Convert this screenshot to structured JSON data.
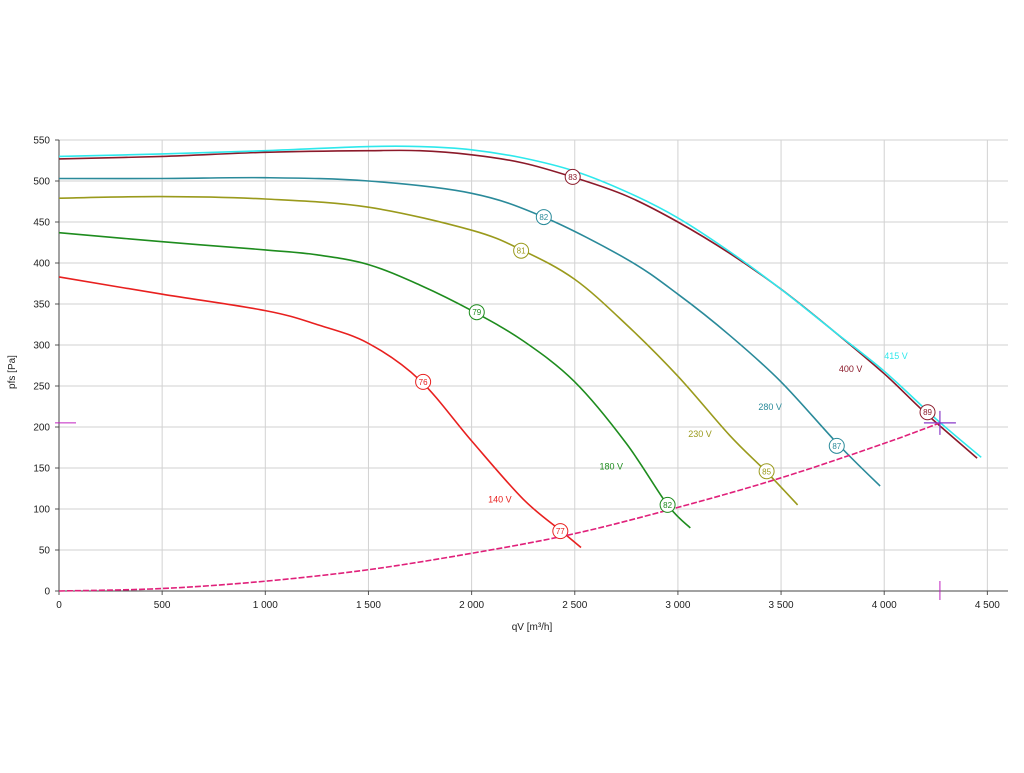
{
  "chart_data": {
    "type": "line",
    "xlabel": "qV [m³/h]",
    "ylabel": "pfs [Pa]",
    "xlim": [
      0,
      4600
    ],
    "ylim": [
      0,
      550
    ],
    "x_ticks": [
      0,
      500,
      1000,
      1500,
      2000,
      2500,
      3000,
      3500,
      4000,
      4500
    ],
    "x_tick_labels": [
      "0",
      "500",
      "1 000",
      "1 500",
      "2 000",
      "2 500",
      "3 000",
      "3 500",
      "4 000",
      "4 500"
    ],
    "y_ticks": [
      0,
      50,
      100,
      150,
      200,
      250,
      300,
      350,
      400,
      450,
      500,
      550
    ],
    "y_tick_labels": [
      "0",
      "50",
      "100",
      "150",
      "200",
      "250",
      "300",
      "350",
      "400",
      "450",
      "500",
      "550"
    ],
    "grid": true,
    "series": [
      {
        "name": "140 V",
        "color": "#e8201f",
        "label_x": 2080,
        "label_y": 108,
        "x": [
          0,
          500,
          1000,
          1250,
          1500,
          1750,
          2000,
          2250,
          2440,
          2530
        ],
        "y": [
          383,
          362,
          342,
          325,
          302,
          257,
          183,
          112,
          72,
          53
        ],
        "markers": [
          {
            "x": 1765,
            "y": 255,
            "text": "76"
          },
          {
            "x": 2430,
            "y": 73,
            "text": "77"
          }
        ]
      },
      {
        "name": "180 V",
        "color": "#1e8c1e",
        "label_x": 2620,
        "label_y": 148,
        "x": [
          0,
          500,
          1000,
          1250,
          1500,
          1750,
          2000,
          2250,
          2500,
          2750,
          2950,
          3060
        ],
        "y": [
          437,
          426,
          416,
          410,
          398,
          373,
          342,
          305,
          255,
          180,
          105,
          77
        ],
        "markers": [
          {
            "x": 2025,
            "y": 340,
            "text": "79"
          },
          {
            "x": 2950,
            "y": 105,
            "text": "82"
          }
        ]
      },
      {
        "name": "230 V",
        "color": "#9a9a1c",
        "label_x": 3050,
        "label_y": 188,
        "x": [
          0,
          500,
          1000,
          1500,
          2000,
          2250,
          2500,
          2750,
          3000,
          3250,
          3430,
          3580
        ],
        "y": [
          479,
          481,
          478,
          468,
          440,
          415,
          380,
          325,
          262,
          190,
          145,
          105
        ],
        "markers": [
          {
            "x": 2240,
            "y": 415,
            "text": "81"
          },
          {
            "x": 3430,
            "y": 146,
            "text": "85"
          }
        ]
      },
      {
        "name": "280 V",
        "color": "#2a8a9a",
        "label_x": 3390,
        "label_y": 221,
        "x": [
          0,
          500,
          1000,
          1500,
          2000,
          2350,
          2750,
          3000,
          3250,
          3500,
          3780,
          3980
        ],
        "y": [
          503,
          503,
          504,
          500,
          485,
          456,
          405,
          362,
          312,
          255,
          178,
          128
        ],
        "markers": [
          {
            "x": 2350,
            "y": 456,
            "text": "82"
          },
          {
            "x": 3770,
            "y": 177,
            "text": "87"
          }
        ]
      },
      {
        "name": "400 V",
        "color": "#8b1a2a",
        "label_x": 3780,
        "label_y": 267,
        "x": [
          0,
          500,
          1000,
          1500,
          1750,
          2000,
          2250,
          2500,
          2750,
          3000,
          3250,
          3500,
          3750,
          4000,
          4200,
          4450
        ],
        "y": [
          527,
          530,
          535,
          537,
          537,
          532,
          522,
          504,
          482,
          450,
          412,
          368,
          318,
          265,
          217,
          162
        ],
        "markers": [
          {
            "x": 2490,
            "y": 505,
            "text": "83"
          },
          {
            "x": 4210,
            "y": 218,
            "text": "89"
          }
        ]
      },
      {
        "name": "415 V",
        "color": "#2ee8ec",
        "label_x": 4000,
        "label_y": 283,
        "x": [
          0,
          500,
          1000,
          1500,
          1750,
          2000,
          2250,
          2500,
          2750,
          3000,
          3250,
          3500,
          3750,
          4000,
          4250,
          4470
        ],
        "y": [
          530,
          533,
          537,
          542,
          542,
          538,
          528,
          512,
          487,
          455,
          414,
          368,
          318,
          268,
          210,
          163
        ],
        "markers": []
      },
      {
        "name": "",
        "color": "#e0207a",
        "dashed": true,
        "x": [
          0,
          500,
          1000,
          1500,
          2000,
          2500,
          3000,
          3500,
          4000,
          4270
        ],
        "y": [
          0,
          3,
          12,
          26,
          46,
          70,
          102,
          138,
          180,
          205
        ],
        "markers": []
      }
    ],
    "operating_point": {
      "x": 4270,
      "y": 205,
      "color": "#8a3ac8"
    },
    "axis_cursor": {
      "x": 4270,
      "y": 205,
      "color": "#c020c0"
    }
  }
}
